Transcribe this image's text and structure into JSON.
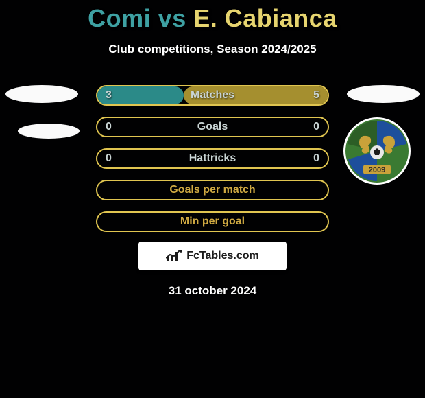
{
  "title": {
    "player1": "Comi",
    "vs": " vs ",
    "player2": "E. Cabianca",
    "color1": "#3ea1a3",
    "color2": "#e6d46f",
    "fontsize": 36
  },
  "subtitle": "Club competitions, Season 2024/2025",
  "rows": [
    {
      "label": "Matches",
      "left": "3",
      "right": "5",
      "left_pct": 37.5,
      "border": "#e0c550",
      "fill_left": "#2b8a88",
      "fill_right": "#a58f2f",
      "text": "#c9d4d4"
    },
    {
      "label": "Goals",
      "left": "0",
      "right": "0",
      "left_pct": 50,
      "border": "#e0c550",
      "fill_left": "transparent",
      "fill_right": "transparent",
      "text": "#c9d4d4"
    },
    {
      "label": "Hattricks",
      "left": "0",
      "right": "0",
      "left_pct": 50,
      "border": "#e0c550",
      "fill_left": "transparent",
      "fill_right": "transparent",
      "text": "#c9d4d4"
    },
    {
      "label": "Goals per match",
      "left": "",
      "right": "",
      "left_pct": 0,
      "border": "#e0c550",
      "fill_left": "transparent",
      "fill_right": "transparent",
      "text": "#cfa942"
    },
    {
      "label": "Min per goal",
      "left": "",
      "right": "",
      "left_pct": 0,
      "border": "#e0c550",
      "fill_left": "transparent",
      "fill_right": "transparent",
      "text": "#cfa942"
    }
  ],
  "attribution": "FcTables.com",
  "date": "31 october 2024",
  "crest_right": {
    "year": "2009",
    "bg1": "#3a7a32",
    "bg2": "#2c5e26",
    "stripe": "#1d4f9c",
    "lion": "#c9a23a"
  },
  "colors": {
    "page_bg": "#010102",
    "white": "#ffffff"
  }
}
